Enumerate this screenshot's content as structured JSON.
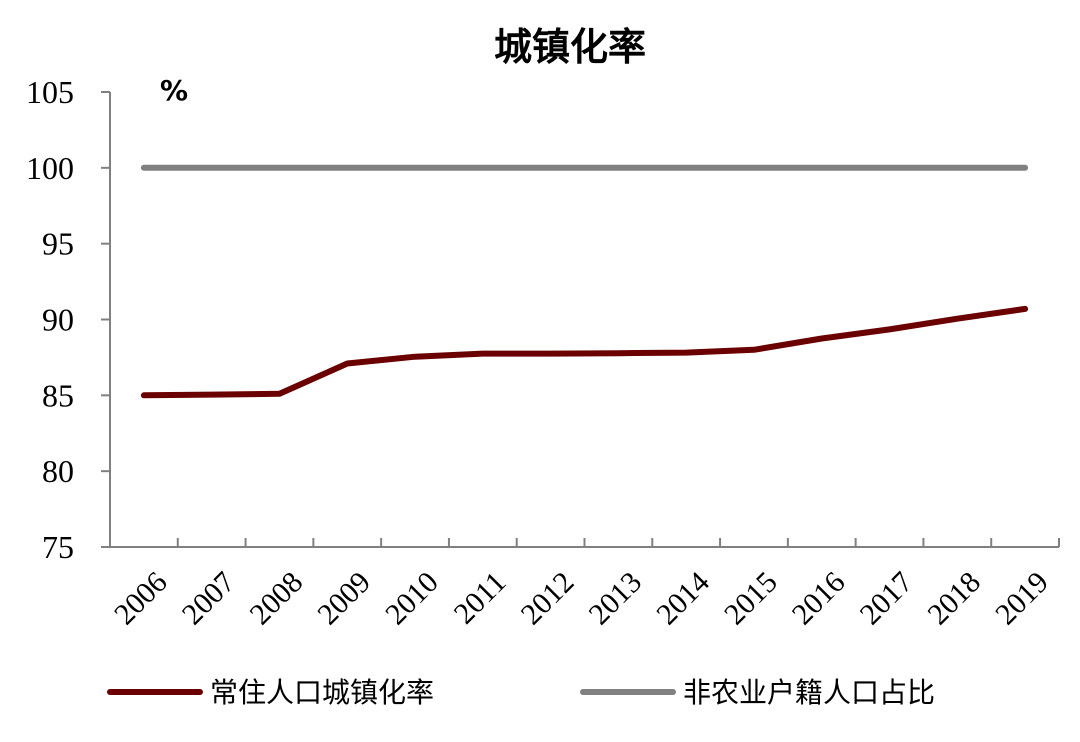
{
  "chart_data": {
    "type": "line",
    "title": "城镇化率",
    "unit": "%",
    "xlabel": "",
    "ylabel": "",
    "x": [
      "2006",
      "2007",
      "2008",
      "2009",
      "2010",
      "2011",
      "2012",
      "2013",
      "2014",
      "2015",
      "2016",
      "2017",
      "2018",
      "2019"
    ],
    "ylim": [
      75,
      105
    ],
    "yticks": [
      75,
      80,
      85,
      90,
      95,
      100,
      105
    ],
    "grid": false,
    "legend_position": "bottom",
    "series": [
      {
        "name": "常住人口城镇化率",
        "color": "#6b0000",
        "values": [
          85.0,
          85.05,
          85.1,
          87.1,
          87.55,
          87.75,
          87.75,
          87.78,
          87.82,
          88.0,
          88.75,
          89.35,
          90.05,
          90.7
        ]
      },
      {
        "name": "非农业户籍人口占比",
        "color": "#808080",
        "values": [
          100,
          100,
          100,
          100,
          100,
          100,
          100,
          100,
          100,
          100,
          100,
          100,
          100,
          100
        ]
      }
    ]
  }
}
